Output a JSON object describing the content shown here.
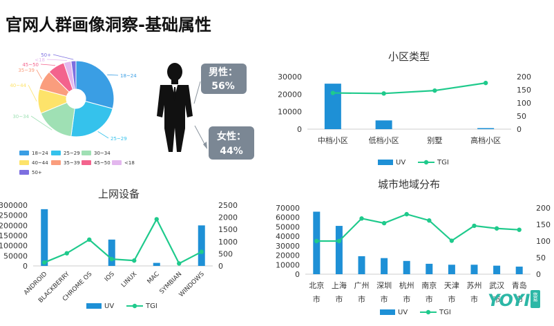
{
  "page": {
    "title": "官网人群画像洞察-基础属性"
  },
  "gender": {
    "male_label": "男性：",
    "male_value": "56%",
    "female_label": "女性：",
    "female_value": "44%"
  },
  "logo": {
    "text": "YOYI",
    "sub": "悠易"
  },
  "colors": {
    "uv": "#1e90d6",
    "tgi": "#1fca8c",
    "card": "#7b8794"
  },
  "chart_data": [
    {
      "type": "pie",
      "id": "age",
      "title": "",
      "slices": [
        {
          "label": "18~24",
          "value": 28,
          "color": "#3a9ee4"
        },
        {
          "label": "25~29",
          "value": 22,
          "color": "#35c2ec"
        },
        {
          "label": "30~34",
          "value": 16,
          "color": "#9fe0b4"
        },
        {
          "label": "40~44",
          "value": 10,
          "color": "#fde36a"
        },
        {
          "label": "35~39",
          "value": 8,
          "color": "#fa9d7d"
        },
        {
          "label": "45~50",
          "value": 7,
          "color": "#f3638d"
        },
        {
          "label": "<18",
          "value": 3,
          "color": "#e3b7ee"
        },
        {
          "label": "50+",
          "value": 2,
          "color": "#7d6fe0"
        }
      ],
      "callouts": [
        {
          "label": "18~24"
        },
        {
          "label": "25~29"
        },
        {
          "label": "30~34"
        },
        {
          "label": "40~44"
        },
        {
          "label": "35~39"
        },
        {
          "label": "45~50"
        },
        {
          "label": "<18"
        },
        {
          "label": "50+"
        }
      ],
      "legend": [
        "18~24",
        "25~29",
        "30~34",
        "40~44",
        "35~39",
        "45~50",
        "<18",
        "50+"
      ]
    },
    {
      "type": "bar+line",
      "id": "community",
      "title": "小区类型",
      "categories": [
        "中档小区",
        "低档小区",
        "别墅",
        "高档小区"
      ],
      "series": [
        {
          "name": "UV",
          "values": [
            26000,
            5000,
            0,
            600
          ]
        },
        {
          "name": "TGI",
          "values": [
            138,
            136,
            147,
            176
          ]
        }
      ],
      "y_left": {
        "ticks": [
          "0",
          "10000",
          "20000",
          "30000"
        ],
        "max": 30000
      },
      "y_right": {
        "ticks": [
          "0",
          "50",
          "100",
          "150",
          "200"
        ],
        "max": 200
      }
    },
    {
      "type": "bar+line",
      "id": "device",
      "title": "上网设备",
      "categories": [
        "ANDROID",
        "BLACKBERRY",
        "CHROME OS",
        "IOS",
        "LINUX",
        "MAC",
        "SYMBIAN",
        "WINDOWS"
      ],
      "series": [
        {
          "name": "UV",
          "values": [
            280000,
            0,
            0,
            130000,
            0,
            15000,
            0,
            200000
          ]
        },
        {
          "name": "TGI",
          "values": [
            140,
            520,
            1080,
            280,
            220,
            1920,
            100,
            580
          ]
        }
      ],
      "y_left": {
        "ticks": [
          "0",
          "50000",
          "100000",
          "150000",
          "200000",
          "250000",
          "300000"
        ],
        "max": 300000
      },
      "y_right": {
        "ticks": [
          "0",
          "500",
          "1000",
          "1500",
          "2000",
          "2500"
        ],
        "max": 2500
      }
    },
    {
      "type": "bar+line",
      "id": "city",
      "title": "城市地域分布",
      "categories": [
        "北京市",
        "上海市",
        "广州市",
        "深圳市",
        "杭州市",
        "南京市",
        "天津市",
        "苏州市",
        "武汉市",
        "青岛市"
      ],
      "series": [
        {
          "name": "UV",
          "values": [
            66000,
            51000,
            19000,
            17000,
            14000,
            11000,
            10000,
            10000,
            9000,
            8000
          ]
        },
        {
          "name": "TGI",
          "values": [
            100,
            100,
            168,
            154,
            181,
            162,
            101,
            146,
            138,
            134
          ]
        }
      ],
      "y_left": {
        "ticks": [
          "0",
          "10000",
          "20000",
          "30000",
          "40000",
          "50000",
          "60000",
          "70000"
        ],
        "max": 70000
      },
      "y_right": {
        "ticks": [
          "0",
          "50",
          "100",
          "150",
          "200"
        ],
        "max": 200
      }
    }
  ],
  "legend_labels": {
    "uv": "UV",
    "tgi": "TGI"
  }
}
